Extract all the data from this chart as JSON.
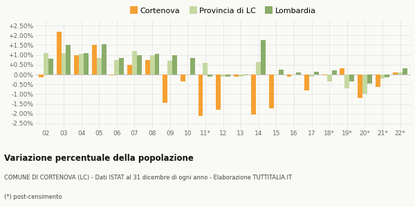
{
  "years": [
    "02",
    "03",
    "04",
    "05",
    "06",
    "07",
    "08",
    "09",
    "10",
    "11*",
    "12",
    "13",
    "14",
    "15",
    "16",
    "17",
    "18*",
    "19*",
    "20*",
    "21*",
    "22*"
  ],
  "cortenova": [
    -0.15,
    2.2,
    1.0,
    1.5,
    -0.05,
    0.5,
    0.75,
    -1.45,
    -0.35,
    -2.1,
    -1.8,
    -0.1,
    -2.05,
    -1.72,
    -0.1,
    -0.8,
    -0.05,
    0.3,
    -1.2,
    -0.65,
    0.1
  ],
  "provincia": [
    1.1,
    1.1,
    1.05,
    0.85,
    0.75,
    1.2,
    1.0,
    0.7,
    -0.05,
    0.6,
    -0.1,
    -0.1,
    0.65,
    -0.05,
    -0.05,
    -0.1,
    -0.35,
    -0.7,
    -1.0,
    -0.2,
    0.1
  ],
  "lombardia": [
    0.8,
    1.5,
    1.1,
    1.55,
    0.85,
    1.0,
    1.05,
    1.0,
    0.85,
    -0.1,
    -0.1,
    -0.05,
    1.75,
    0.25,
    0.1,
    0.15,
    0.2,
    -0.35,
    -0.45,
    -0.15,
    0.3
  ],
  "color_cortenova": "#f5a032",
  "color_provincia": "#c5d8a0",
  "color_lombardia": "#8aad6a",
  "title": "Variazione percentuale della popolazione",
  "caption1": "COMUNE DI CORTENOVA (LC) - Dati ISTAT al 31 dicembre di ogni anno - Elaborazione TUTTITALIA.IT",
  "caption2": "(*) post-censimento",
  "ylim": [
    -2.75,
    2.75
  ],
  "yticks": [
    -2.5,
    -2.0,
    -1.5,
    -1.0,
    -0.5,
    0.0,
    0.5,
    1.0,
    1.5,
    2.0,
    2.5
  ],
  "bg_color": "#f9f9f6",
  "legend_labels": [
    "Cortenova",
    "Provincia di LC",
    "Lombardia"
  ]
}
